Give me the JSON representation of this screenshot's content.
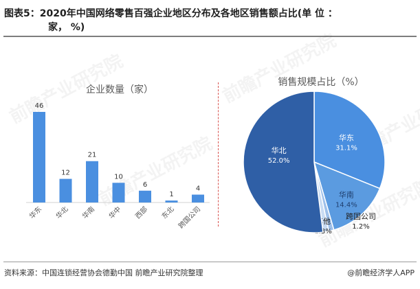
{
  "title": {
    "line1": "图表5：2020年中国网络零售百强企业地区分布及各地区销售额占比(单 位 ：",
    "line2": "家， %)"
  },
  "footer": {
    "source": "资料来源：中国连锁经营协会德勤中国 前瞻产业研究院整理",
    "credit": "@前瞻经济学人APP"
  },
  "watermark": "前瞻产业研究院",
  "colors": {
    "bar": "#4a8fe0",
    "divider": "#d9534f",
    "pie_north": "#2f5fa6",
    "pie_east": "#4a8fe0",
    "pie_south": "#5b9be0",
    "pie_cross": "#9ec0ea",
    "pie_other": "#c9dcf3"
  },
  "chart_data": [
    {
      "type": "bar",
      "title": "企业数量（家）",
      "categories": [
        "华东",
        "华北",
        "华南",
        "华中",
        "西部",
        "东北",
        "跨国公司"
      ],
      "values": [
        46,
        12,
        21,
        10,
        6,
        1,
        4
      ],
      "ylim": [
        0,
        46
      ],
      "grid": false
    },
    {
      "type": "pie",
      "title": "销售规模占比（%）",
      "slices": [
        {
          "label": "华东",
          "value": 31.1,
          "display": "31.1%"
        },
        {
          "label": "华南",
          "value": 14.4,
          "display": "14.4%"
        },
        {
          "label": "跨国公司",
          "value": 1.2,
          "display": "1.2%"
        },
        {
          "label": "其他",
          "value": 1.3,
          "display": "1.3%"
        },
        {
          "label": "华北",
          "value": 52.0,
          "display": "52.0%"
        }
      ]
    }
  ]
}
